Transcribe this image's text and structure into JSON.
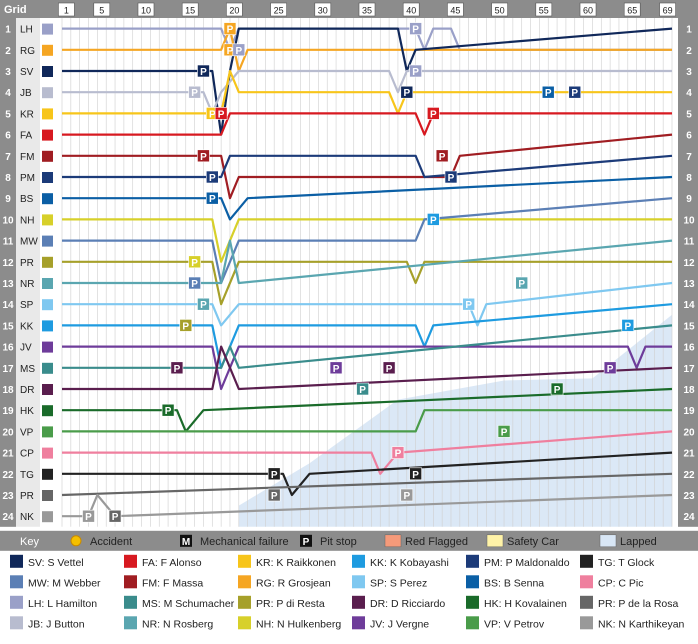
{
  "chart_data": {
    "type": "line",
    "header_label": "Grid",
    "lap_ticks": [
      1,
      5,
      10,
      15,
      20,
      25,
      30,
      35,
      40,
      45,
      50,
      55,
      60,
      65,
      69
    ],
    "total_laps": 69,
    "drivers": [
      {
        "code": "LH",
        "color": "#9aa0c8",
        "positions": [
          [
            0,
            1
          ],
          [
            18,
            1
          ],
          [
            19,
            2
          ],
          [
            20,
            1
          ],
          [
            40,
            1
          ],
          [
            41,
            2
          ],
          [
            42,
            1
          ],
          [
            44,
            1
          ],
          [
            45,
            2
          ],
          [
            69,
            2
          ]
        ]
      },
      {
        "code": "RG",
        "color": "#f5a623",
        "positions": [
          [
            0,
            2
          ],
          [
            18,
            2
          ],
          [
            19,
            1
          ],
          [
            20,
            3
          ],
          [
            21,
            2
          ],
          [
            69,
            2
          ]
        ]
      },
      {
        "code": "SV",
        "color": "#10285a",
        "positions": [
          [
            0,
            3
          ],
          [
            17,
            3
          ],
          [
            18,
            6
          ],
          [
            19,
            3
          ],
          [
            20,
            1
          ],
          [
            38,
            1
          ],
          [
            39,
            3
          ],
          [
            40,
            2
          ],
          [
            69,
            1
          ]
        ]
      },
      {
        "code": "JB",
        "color": "#b8bccf",
        "positions": [
          [
            0,
            4
          ],
          [
            16,
            4
          ],
          [
            17,
            5
          ],
          [
            18,
            4
          ],
          [
            20,
            3
          ],
          [
            37,
            3
          ],
          [
            38,
            4
          ],
          [
            39,
            3
          ],
          [
            69,
            3
          ]
        ]
      },
      {
        "code": "KR",
        "color": "#f7c51a",
        "positions": [
          [
            0,
            5
          ],
          [
            18,
            5
          ],
          [
            19,
            3
          ],
          [
            20,
            4
          ],
          [
            37,
            4
          ],
          [
            38,
            5
          ],
          [
            39,
            4
          ],
          [
            69,
            4
          ]
        ]
      },
      {
        "code": "FA",
        "color": "#d71920",
        "positions": [
          [
            0,
            6
          ],
          [
            18,
            6
          ],
          [
            19,
            5
          ],
          [
            20,
            5
          ],
          [
            40,
            5
          ],
          [
            41,
            6
          ],
          [
            42,
            5
          ],
          [
            69,
            5
          ]
        ]
      },
      {
        "code": "FM",
        "color": "#a01d22",
        "positions": [
          [
            0,
            7
          ],
          [
            18,
            7
          ],
          [
            19,
            9
          ],
          [
            20,
            8
          ],
          [
            44,
            8
          ],
          [
            45,
            7
          ],
          [
            69,
            6
          ]
        ]
      },
      {
        "code": "PM",
        "color": "#1c3b79",
        "positions": [
          [
            0,
            8
          ],
          [
            18,
            8
          ],
          [
            19,
            7
          ],
          [
            40,
            7
          ],
          [
            41,
            8
          ],
          [
            69,
            7
          ]
        ]
      },
      {
        "code": "BS",
        "color": "#0b5fa5",
        "positions": [
          [
            0,
            9
          ],
          [
            18,
            9
          ],
          [
            19,
            10
          ],
          [
            21,
            9
          ],
          [
            69,
            8
          ]
        ]
      },
      {
        "code": "NH",
        "color": "#d7d02a",
        "positions": [
          [
            0,
            10
          ],
          [
            17,
            10
          ],
          [
            18,
            12
          ],
          [
            20,
            10
          ],
          [
            69,
            10
          ]
        ]
      },
      {
        "code": "MW",
        "color": "#5b7fb5",
        "positions": [
          [
            0,
            11
          ],
          [
            17,
            11
          ],
          [
            18,
            13
          ],
          [
            20,
            11
          ],
          [
            40,
            11
          ],
          [
            41,
            10
          ],
          [
            69,
            9
          ]
        ]
      },
      {
        "code": "PR",
        "color": "#a6a02a",
        "positions": [
          [
            0,
            12
          ],
          [
            17,
            12
          ],
          [
            18,
            14
          ],
          [
            20,
            12
          ],
          [
            39,
            12
          ],
          [
            40,
            13
          ],
          [
            41,
            12
          ],
          [
            69,
            12
          ]
        ]
      },
      {
        "code": "NR",
        "color": "#5aa6b0",
        "positions": [
          [
            0,
            13
          ],
          [
            18,
            13
          ],
          [
            19,
            11
          ],
          [
            20,
            13
          ],
          [
            69,
            11
          ]
        ]
      },
      {
        "code": "SP",
        "color": "#7fc8f0",
        "positions": [
          [
            0,
            14
          ],
          [
            17,
            14
          ],
          [
            18,
            15
          ],
          [
            20,
            14
          ],
          [
            46,
            14
          ],
          [
            47,
            15
          ],
          [
            48,
            14
          ],
          [
            69,
            13
          ]
        ]
      },
      {
        "code": "KK",
        "color": "#1e9be0",
        "positions": [
          [
            0,
            15
          ],
          [
            17,
            15
          ],
          [
            18,
            17
          ],
          [
            20,
            15
          ],
          [
            40,
            15
          ],
          [
            41,
            16
          ],
          [
            42,
            15
          ],
          [
            69,
            14
          ]
        ]
      },
      {
        "code": "JV",
        "color": "#6e3c9a",
        "positions": [
          [
            0,
            16
          ],
          [
            17,
            16
          ],
          [
            18,
            18
          ],
          [
            20,
            16
          ],
          [
            64,
            16
          ],
          [
            65,
            17
          ],
          [
            66,
            16
          ],
          [
            69,
            16
          ]
        ]
      },
      {
        "code": "MS",
        "color": "#3a8c8c",
        "positions": [
          [
            0,
            17
          ],
          [
            18,
            17
          ],
          [
            19,
            16
          ],
          [
            20,
            17
          ],
          [
            69,
            15
          ]
        ]
      },
      {
        "code": "DR",
        "color": "#5a1e4e",
        "positions": [
          [
            0,
            18
          ],
          [
            17,
            18
          ],
          [
            18,
            16
          ],
          [
            20,
            18
          ],
          [
            69,
            17
          ]
        ]
      },
      {
        "code": "HK",
        "color": "#1a6b2a",
        "positions": [
          [
            0,
            19
          ],
          [
            13,
            19
          ],
          [
            14,
            20
          ],
          [
            16,
            19
          ],
          [
            69,
            18
          ]
        ]
      },
      {
        "code": "VP",
        "color": "#4a9c4a",
        "positions": [
          [
            0,
            20
          ],
          [
            40,
            20
          ],
          [
            41,
            19
          ],
          [
            69,
            19
          ]
        ]
      },
      {
        "code": "CP",
        "color": "#ef7f9e",
        "positions": [
          [
            0,
            21
          ],
          [
            35,
            21
          ],
          [
            36,
            22
          ],
          [
            38,
            21
          ],
          [
            69,
            20
          ]
        ]
      },
      {
        "code": "TG",
        "color": "#222222",
        "positions": [
          [
            0,
            22
          ],
          [
            25,
            22
          ],
          [
            26,
            23
          ],
          [
            28,
            22
          ],
          [
            69,
            21
          ]
        ]
      },
      {
        "code": "PR2",
        "label": "PR",
        "color": "#666666",
        "positions": [
          [
            0,
            23
          ],
          [
            69,
            22
          ]
        ]
      },
      {
        "code": "NK",
        "color": "#999999",
        "positions": [
          [
            0,
            24
          ],
          [
            3,
            24
          ],
          [
            4,
            23
          ],
          [
            6,
            24
          ],
          [
            69,
            23
          ]
        ]
      }
    ],
    "pitstops": [
      {
        "lap": 19,
        "pos": 2,
        "code": "RG"
      },
      {
        "lap": 20,
        "pos": 2,
        "code": "LH"
      },
      {
        "lap": 16,
        "pos": 3,
        "code": "SV"
      },
      {
        "lap": 15,
        "pos": 4,
        "code": "JB"
      },
      {
        "lap": 17,
        "pos": 5,
        "code": "KR"
      },
      {
        "lap": 18,
        "pos": 5,
        "code": "FA"
      },
      {
        "lap": 16,
        "pos": 7,
        "code": "FM"
      },
      {
        "lap": 17,
        "pos": 8,
        "code": "PM"
      },
      {
        "lap": 17,
        "pos": 9,
        "code": "BS"
      },
      {
        "lap": 15,
        "pos": 12,
        "code": "NH"
      },
      {
        "lap": 15,
        "pos": 13,
        "code": "MW"
      },
      {
        "lap": 14,
        "pos": 15,
        "code": "PR"
      },
      {
        "lap": 16,
        "pos": 14,
        "code": "NR"
      },
      {
        "lap": 12,
        "pos": 19,
        "code": "HK"
      },
      {
        "lap": 3,
        "pos": 24,
        "code": "NK"
      },
      {
        "lap": 6,
        "pos": 24,
        "code": "PR2"
      },
      {
        "lap": 13,
        "pos": 17,
        "code": "DR"
      },
      {
        "lap": 19,
        "pos": 1,
        "code": "RG"
      },
      {
        "lap": 40,
        "pos": 1,
        "code": "LH"
      },
      {
        "lap": 39,
        "pos": 4,
        "code": "SV"
      },
      {
        "lap": 42,
        "pos": 5,
        "code": "FA"
      },
      {
        "lap": 43,
        "pos": 7,
        "code": "FM"
      },
      {
        "lap": 44,
        "pos": 8,
        "code": "PM"
      },
      {
        "lap": 42,
        "pos": 10,
        "code": "KK"
      },
      {
        "lap": 46,
        "pos": 14,
        "code": "SP"
      },
      {
        "lap": 52,
        "pos": 13,
        "code": "NR"
      },
      {
        "lap": 55,
        "pos": 4,
        "code": "BS"
      },
      {
        "lap": 58,
        "pos": 4,
        "code": "PM"
      },
      {
        "lap": 64,
        "pos": 15,
        "code": "KK"
      },
      {
        "lap": 62,
        "pos": 17,
        "code": "JV"
      },
      {
        "lap": 56,
        "pos": 18,
        "code": "HK"
      },
      {
        "lap": 50,
        "pos": 20,
        "code": "VP"
      },
      {
        "lap": 40,
        "pos": 22,
        "code": "TG"
      },
      {
        "lap": 39,
        "pos": 23,
        "code": "NK"
      },
      {
        "lap": 24,
        "pos": 22,
        "code": "TG"
      },
      {
        "lap": 24,
        "pos": 23,
        "code": "PR2"
      },
      {
        "lap": 31,
        "pos": 17,
        "code": "JV"
      },
      {
        "lap": 37,
        "pos": 17,
        "code": "DR"
      },
      {
        "lap": 34,
        "pos": 18,
        "code": "MS"
      },
      {
        "lap": 38,
        "pos": 21,
        "code": "CP"
      },
      {
        "lap": 40,
        "pos": 3,
        "code": "LH"
      }
    ],
    "legend_key": {
      "title": "Key",
      "items": [
        {
          "symbol": "accident",
          "label": "Accident"
        },
        {
          "symbol": "M",
          "label": "Mechanical failure"
        },
        {
          "symbol": "P",
          "label": "Pit stop"
        },
        {
          "symbol": "red",
          "label": "Red Flagged",
          "color": "#f59a7a"
        },
        {
          "symbol": "yellow",
          "label": "Safety Car",
          "color": "#fff3a8"
        },
        {
          "symbol": "lapped",
          "label": "Lapped",
          "color": "#d8e6f5"
        }
      ]
    },
    "driver_legend": [
      {
        "label": "SV: S Vettel",
        "color": "#10285a"
      },
      {
        "label": "FA: F Alonso",
        "color": "#d71920"
      },
      {
        "label": "KR: K Raikkonen",
        "color": "#f7c51a"
      },
      {
        "label": "KK: K Kobayashi",
        "color": "#1e9be0"
      },
      {
        "label": "PM: P Maldonaldo",
        "color": "#1c3b79"
      },
      {
        "label": "TG: T Glock",
        "color": "#222222"
      },
      {
        "label": "MW: M Webber",
        "color": "#5b7fb5"
      },
      {
        "label": "FM: F Massa",
        "color": "#a01d22"
      },
      {
        "label": "RG: R Grosjean",
        "color": "#f5a623"
      },
      {
        "label": "SP: S Perez",
        "color": "#7fc8f0"
      },
      {
        "label": "BS: B Senna",
        "color": "#0b5fa5"
      },
      {
        "label": "CP: C Pic",
        "color": "#ef7f9e"
      },
      {
        "label": "LH: L Hamilton",
        "color": "#9aa0c8"
      },
      {
        "label": "MS: M Schumacher",
        "color": "#3a8c8c"
      },
      {
        "label": "PR: P di Resta",
        "color": "#a6a02a"
      },
      {
        "label": "DR: D Ricciardo",
        "color": "#5a1e4e"
      },
      {
        "label": "HK: H Kovalainen",
        "color": "#1a6b2a"
      },
      {
        "label": "PR: P de la Rosa",
        "color": "#666666"
      },
      {
        "label": "JB: J Button",
        "color": "#b8bccf"
      },
      {
        "label": "NR: N Rosberg",
        "color": "#5aa6b0"
      },
      {
        "label": "NH: N Hulkenberg",
        "color": "#d7d02a"
      },
      {
        "label": "JV: J Vergne",
        "color": "#6e3c9a"
      },
      {
        "label": "VP: V Petrov",
        "color": "#4a9c4a"
      },
      {
        "label": "NK: N Karthikeyan",
        "color": "#999999"
      }
    ]
  }
}
